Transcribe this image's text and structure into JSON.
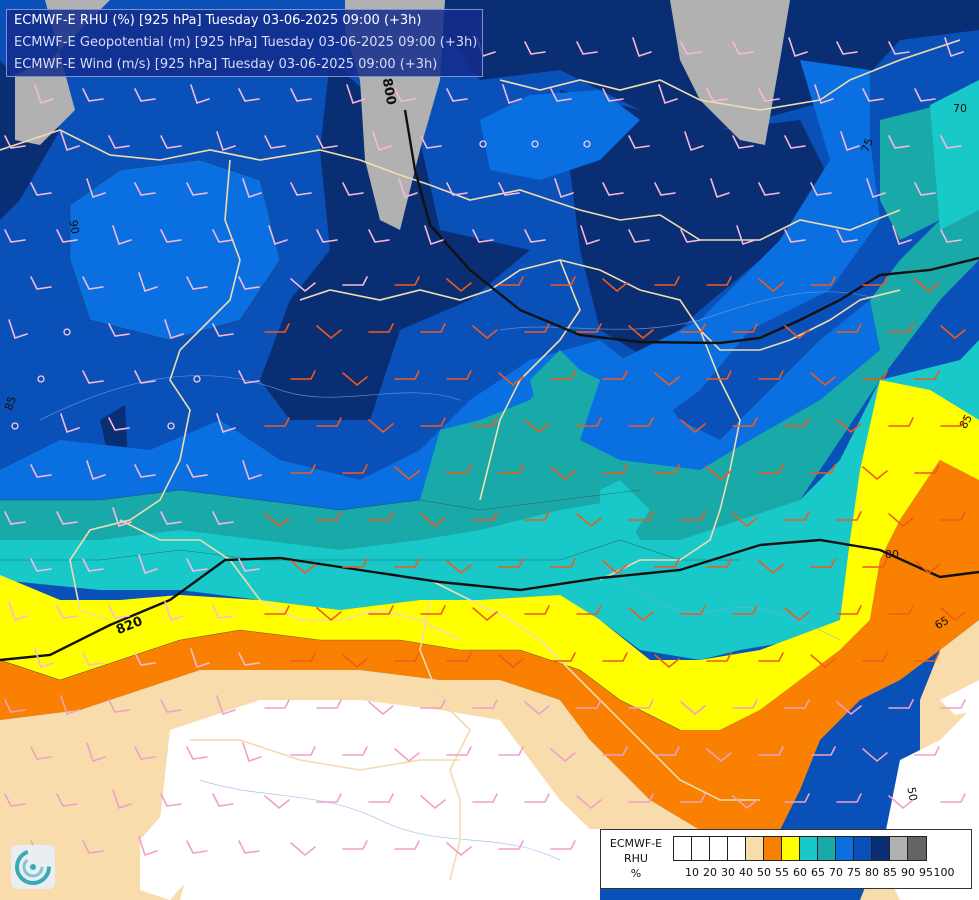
{
  "titles": {
    "line1": "ECMWF-E RHU (%) [925 hPa] Tuesday 03-06-2025 09:00 (+3h)",
    "line2": "ECMWF-E Geopotential (m) [925 hPa] Tuesday 03-06-2025 09:00 (+3h)",
    "line3": "ECMWF-E Wind (m/s) [925 hPa] Tuesday 03-06-2025 09:00 (+3h)"
  },
  "legend": {
    "title_lines": [
      "ECMWF-E",
      "RHU",
      "%"
    ],
    "tick_labels": [
      "10",
      "20",
      "30",
      "40",
      "50",
      "55",
      "60",
      "65",
      "70",
      "75",
      "80",
      "85",
      "90",
      "95",
      "100"
    ],
    "colors": [
      "#ffffff",
      "#ffffff",
      "#ffffff",
      "#ffffff",
      "#f9dcab",
      "#f98000",
      "#ffff00",
      "#19c8c8",
      "#19a9a9",
      "#0a6fe0",
      "#0a50b9",
      "#0a2e74",
      "#b1b1b1",
      "#646464"
    ]
  },
  "geopotential_labels": [
    "800",
    "820"
  ],
  "rhu_labels": [
    "90",
    "70",
    "75",
    "85",
    "85",
    "80",
    "65",
    "50"
  ],
  "icons": {
    "logo": "ecmwf-swirl-logo-icon"
  }
}
